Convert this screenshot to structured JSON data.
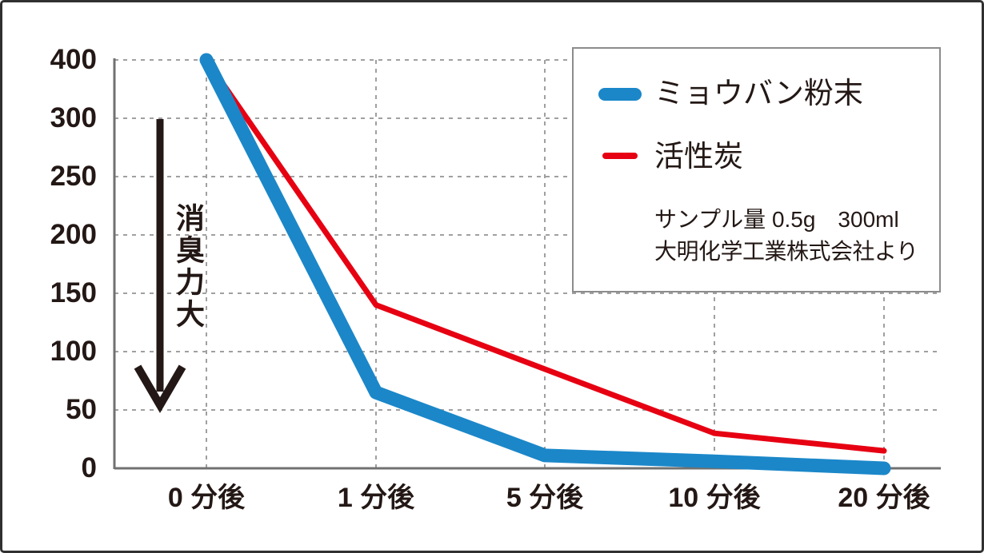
{
  "colors": {
    "ink": "#231815",
    "axis": "#717171",
    "grid": "#a0a0a0",
    "legend_border": "#8c8c8c",
    "frame": "#303030",
    "background": "#ffffff",
    "alum_blue": "#1b87c9",
    "carbon_red": "#e60012"
  },
  "annotation": {
    "arrow_label": "消臭力大",
    "arrow_direction": "down"
  },
  "legend": {
    "items": [
      {
        "label": "ミョウバン粉末",
        "color": "#1b87c9",
        "swatch": "thick-pill"
      },
      {
        "label": "活性炭",
        "color": "#e60012",
        "swatch": "thin-line"
      }
    ],
    "note_sample": "サンプル量 0.5g　300ml",
    "note_source": "大明化学工業株式会社より"
  },
  "chart_data": {
    "type": "line",
    "title": "",
    "xlabel": "",
    "ylabel": "",
    "categories": [
      "0 分後",
      "1 分後",
      "5 分後",
      "10 分後",
      "20 分後"
    ],
    "y_ticks": [
      400,
      300,
      250,
      200,
      150,
      100,
      50,
      0
    ],
    "y_scale_note": "non-linear axis: tick values 400,300,250,200,150,100,50,0 are evenly spaced",
    "grid": "dashed both axes",
    "legend_position": "top-right box",
    "series": [
      {
        "name": "ミョウバン粉末",
        "color": "#1b87c9",
        "stroke_width": 17,
        "values": [
          400,
          65,
          11,
          6,
          0
        ]
      },
      {
        "name": "活性炭",
        "color": "#e60012",
        "stroke_width": 7,
        "values": [
          400,
          140,
          85,
          30,
          15
        ]
      }
    ]
  }
}
